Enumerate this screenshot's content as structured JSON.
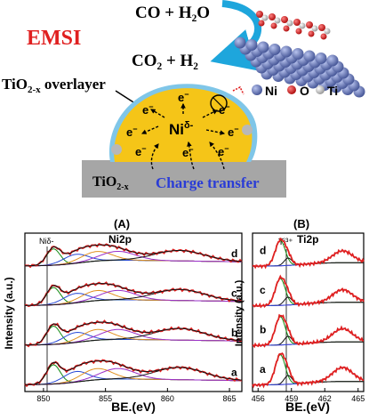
{
  "scheme": {
    "acronym": "EMSI",
    "reactants": "CO + H₂O",
    "products": "CO₂ + H₂",
    "overlayer_label": "TiO₂-x overlayer",
    "center_label": "Niδ-",
    "electron": "e⁻",
    "support_label": "TiO₂-x",
    "charge_transfer": "Charge transfer",
    "legend": [
      "Ni",
      "O",
      "Ti"
    ],
    "colors": {
      "accent": "#e02020",
      "ni": "#6b7bb8",
      "o": "#d52020",
      "ti": "#c8c8c8",
      "blob": "#f5c518",
      "overlayer": "#7fc6e8",
      "support": "#a0a0a0",
      "arrow": "#1ea6dc",
      "charge_text": "#2a3cd6"
    }
  },
  "panels": [
    {
      "label": "(A)",
      "title": "Ni2p",
      "peak_label": "Niδ-",
      "ylabel": "Intensity (a.u.)",
      "xlabel": "BE.(eV)",
      "xticks": [
        "850",
        "855",
        "860",
        "865"
      ],
      "xlim": [
        848.5,
        866
      ],
      "traces": [
        "d",
        "c",
        "b",
        "a"
      ],
      "peaks": [
        850.8,
        852.6,
        854.2,
        856.0,
        861.0,
        863.5
      ],
      "colors": {
        "data": "#e02020",
        "fit1": "#128a12",
        "fit2": "#2a4bd6",
        "fit3": "#e09020",
        "fit4": "#9a30c8",
        "envelope": "#111111",
        "background": "#c020c0"
      }
    },
    {
      "label": "(B)",
      "title": "Ti2p",
      "peak_label": "Ti³⁺",
      "ylabel": "Intensity (a.u.)",
      "xlabel": "BE.(eV)",
      "xticks": [
        "456",
        "459",
        "462",
        "465"
      ],
      "xlim": [
        455.5,
        465.5
      ],
      "traces": [
        "d",
        "c",
        "b",
        "a"
      ],
      "peaks": [
        458.0,
        458.7,
        463.5
      ],
      "colors": {
        "data": "#e02020",
        "fit1": "#128a12",
        "fit2": "#111111",
        "fit3": "#2a4bd6",
        "background": "#c020c0"
      }
    }
  ]
}
